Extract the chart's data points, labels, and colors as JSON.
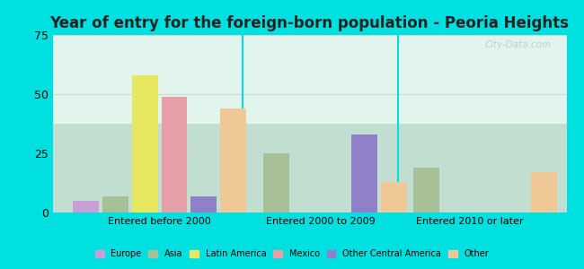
{
  "title": "Year of entry for the foreign-born population - Peoria Heights",
  "groups": [
    "Entered before 2000",
    "Entered 2000 to 2009",
    "Entered 2010 or later"
  ],
  "series": [
    {
      "name": "Europe",
      "color": "#c8a0d8",
      "values": [
        5,
        0,
        0
      ]
    },
    {
      "name": "Asia",
      "color": "#a8c098",
      "values": [
        7,
        25,
        19
      ]
    },
    {
      "name": "Latin America",
      "color": "#e8e860",
      "values": [
        58,
        0,
        0
      ]
    },
    {
      "name": "Mexico",
      "color": "#e8a0a8",
      "values": [
        49,
        0,
        0
      ]
    },
    {
      "name": "Other Central America",
      "color": "#9080c8",
      "values": [
        7,
        33,
        0
      ]
    },
    {
      "name": "Other",
      "color": "#f0c898",
      "values": [
        44,
        13,
        17
      ]
    }
  ],
  "ylim": [
    0,
    75
  ],
  "yticks": [
    0,
    25,
    50,
    75
  ],
  "plot_bg_gradient_top": "#e8f8f0",
  "plot_bg_gradient_bot": "#d8f0e8",
  "cyan_border": "#00e0e0",
  "grid_color": "#c8ddd0",
  "title_fontsize": 12,
  "watermark": "City-Data.com",
  "bar_width": 0.055,
  "group_centers": [
    0.22,
    0.52,
    0.8
  ]
}
